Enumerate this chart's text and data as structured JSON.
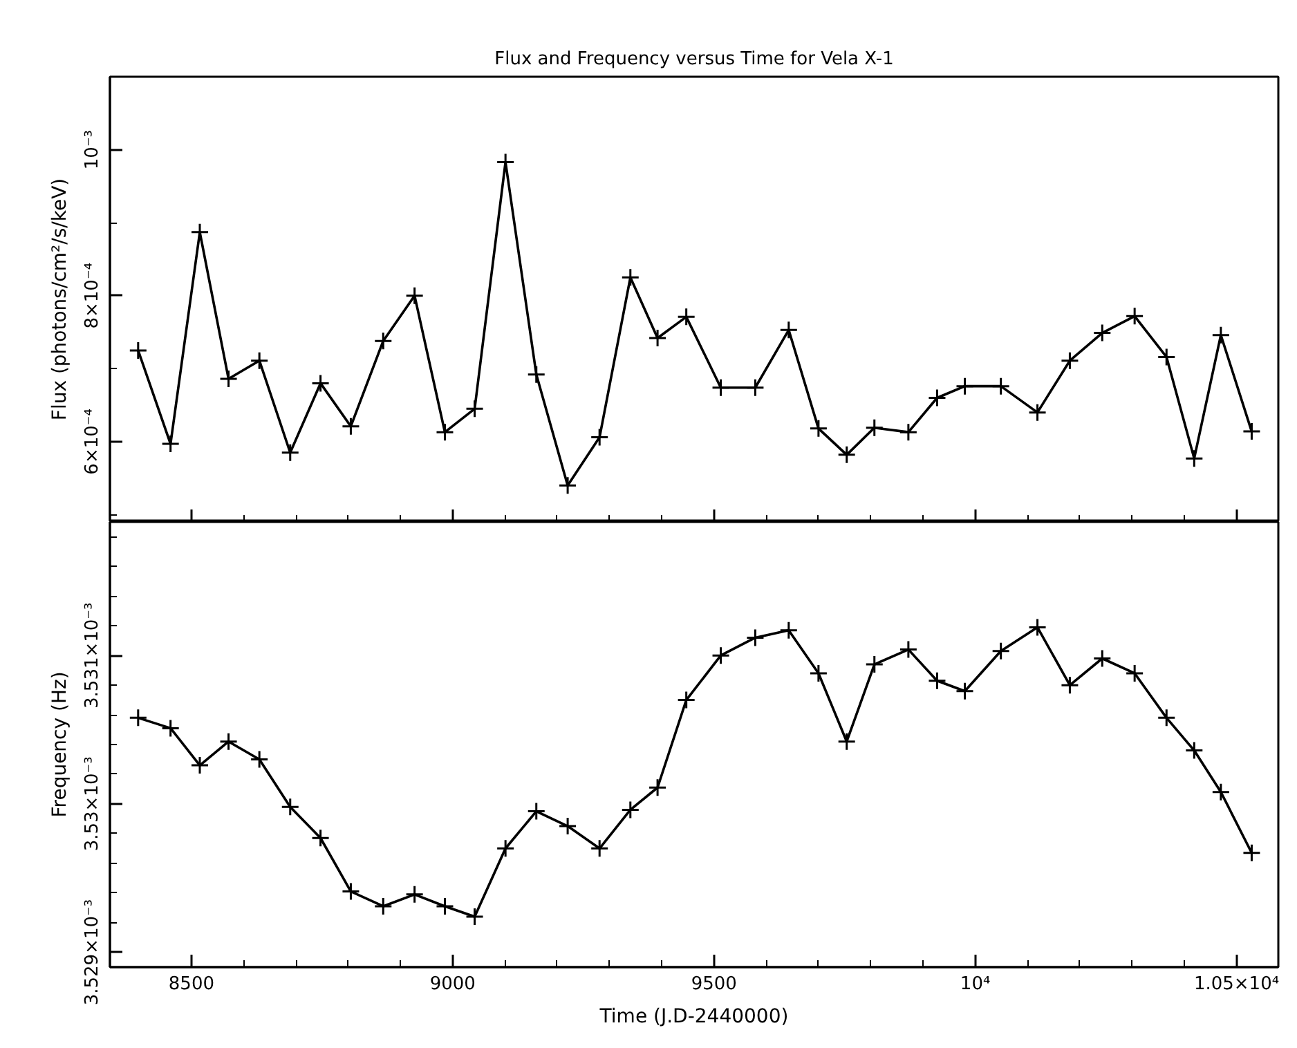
{
  "chart_data": [
    {
      "type": "line",
      "title": "Flux and Frequency versus Time for Vela X-1",
      "ylabel": "Flux (photons/cm²/s/keV)",
      "marker": "cross",
      "line_style": "solid",
      "tick_labels": "y",
      "xlim": [
        8344,
        10580
      ],
      "ylim": [
        0.00049,
        0.0011
      ],
      "xticks": [
        8500,
        {
          "value": 8600,
          "label": null
        },
        {
          "value": 8700,
          "label": null
        },
        {
          "value": 8800,
          "label": null
        },
        {
          "value": 8900,
          "label": null
        },
        9000,
        {
          "value": 9100,
          "label": null
        },
        {
          "value": 9200,
          "label": null
        },
        {
          "value": 9300,
          "label": null
        },
        {
          "value": 9400,
          "label": null
        },
        9500,
        {
          "value": 9600,
          "label": null
        },
        {
          "value": 9700,
          "label": null
        },
        {
          "value": 9800,
          "label": null
        },
        {
          "value": 9900,
          "label": null
        },
        10000,
        {
          "value": 10100,
          "label": null
        },
        {
          "value": 10200,
          "label": null
        },
        {
          "value": 10300,
          "label": null
        },
        {
          "value": 10400,
          "label": null
        },
        10500
      ],
      "yticks": [
        {
          "value": 0.0005,
          "label": null
        },
        {
          "value": 0.0006,
          "label": "6×10⁻⁴"
        },
        {
          "value": 0.0007,
          "label": null
        },
        {
          "value": 0.0008,
          "label": "8×10⁻⁴"
        },
        {
          "value": 0.0009,
          "label": null
        },
        {
          "value": 0.001,
          "label": "10⁻³"
        }
      ],
      "series": [
        {
          "color": "#000000",
          "x": [
            8398,
            8460,
            8516,
            8571,
            8630,
            8689,
            8747,
            8805,
            8867,
            8927,
            8985,
            9042,
            9101,
            9160,
            9220,
            9281,
            9340,
            9392,
            9447,
            9513,
            9579,
            9643,
            9700,
            9754,
            9807,
            9872,
            9927,
            9980,
            10049,
            10119,
            10181,
            10243,
            10305,
            10366,
            10419,
            10470,
            10529
          ],
          "values": [
            0.000725,
            0.000597,
            0.000887,
            0.000686,
            0.000711,
            0.000585,
            0.00068,
            0.000621,
            0.000738,
            0.0008,
            0.000613,
            0.000645,
            0.000983,
            0.000692,
            0.00054,
            0.000606,
            0.000825,
            0.000742,
            0.000771,
            0.000674,
            0.000674,
            0.000753,
            0.000618,
            0.000582,
            0.000619,
            0.000613,
            0.00066,
            0.000676,
            0.000676,
            0.00064,
            0.000711,
            0.000749,
            0.000772,
            0.000716,
            0.000577,
            0.000746,
            0.000614
          ]
        }
      ]
    },
    {
      "type": "line",
      "xlabel": "Time (J.D-2440000)",
      "ylabel": "Frequency (Hz)",
      "marker": "cross",
      "line_style": "solid",
      "xlim": [
        8344,
        10580
      ],
      "ylim": [
        0.0035289,
        0.0035319
      ],
      "xticks": [
        8500,
        {
          "value": 8600,
          "label": null
        },
        {
          "value": 8700,
          "label": null
        },
        {
          "value": 8800,
          "label": null
        },
        {
          "value": 8900,
          "label": null
        },
        9000,
        {
          "value": 9100,
          "label": null
        },
        {
          "value": 9200,
          "label": null
        },
        {
          "value": 9300,
          "label": null
        },
        {
          "value": 9400,
          "label": null
        },
        9500,
        {
          "value": 9600,
          "label": null
        },
        {
          "value": 9700,
          "label": null
        },
        {
          "value": 9800,
          "label": null
        },
        {
          "value": 9900,
          "label": null
        },
        {
          "value": 10000,
          "label": "10⁴"
        },
        {
          "value": 10100,
          "label": null
        },
        {
          "value": 10200,
          "label": null
        },
        {
          "value": 10300,
          "label": null
        },
        {
          "value": 10400,
          "label": null
        },
        {
          "value": 10500,
          "label": "1.05×10⁴"
        }
      ],
      "yticks": [
        {
          "value": 0.003529,
          "label": "3.529×10⁻³"
        },
        {
          "value": 0.0035292,
          "label": null
        },
        {
          "value": 0.0035294,
          "label": null
        },
        {
          "value": 0.0035296,
          "label": null
        },
        {
          "value": 0.0035298,
          "label": null
        },
        {
          "value": 0.00353,
          "label": "3.53×10⁻³"
        },
        {
          "value": 0.0035302,
          "label": null
        },
        {
          "value": 0.0035304,
          "label": null
        },
        {
          "value": 0.0035306,
          "label": null
        },
        {
          "value": 0.0035308,
          "label": null
        },
        {
          "value": 0.003531,
          "label": "3.531×10⁻³"
        },
        {
          "value": 0.0035312,
          "label": null
        },
        {
          "value": 0.0035314,
          "label": null
        },
        {
          "value": 0.0035316,
          "label": null
        },
        {
          "value": 0.0035318,
          "label": null
        }
      ],
      "series": [
        {
          "color": "#000000",
          "x": [
            8398,
            8460,
            8516,
            8571,
            8630,
            8689,
            8747,
            8805,
            8867,
            8927,
            8985,
            9042,
            9101,
            9160,
            9220,
            9281,
            9340,
            9392,
            9447,
            9513,
            9579,
            9643,
            9700,
            9754,
            9807,
            9872,
            9927,
            9980,
            10049,
            10119,
            10181,
            10243,
            10305,
            10366,
            10419,
            10470,
            10529
          ],
          "values": [
            0.00353058,
            0.00353051,
            0.00353026,
            0.00353042,
            0.0035303,
            0.00352998,
            0.00352977,
            0.00352941,
            0.00352931,
            0.00352939,
            0.00352931,
            0.00352924,
            0.0035297,
            0.00352995,
            0.00352985,
            0.0035297,
            0.00352996,
            0.00353011,
            0.0035307,
            0.003531,
            0.00353112,
            0.00353117,
            0.00353088,
            0.00353042,
            0.00353094,
            0.00353104,
            0.00353083,
            0.00353076,
            0.00353103,
            0.00353119,
            0.0035308,
            0.00353098,
            0.00353088,
            0.00353058,
            0.00353036,
            0.00353008,
            0.00352967
          ]
        }
      ]
    }
  ]
}
